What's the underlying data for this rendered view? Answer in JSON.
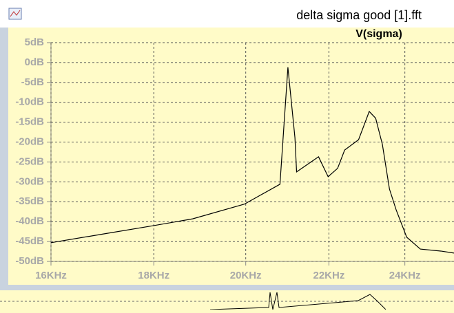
{
  "window": {
    "title": "delta sigma good [1].fft"
  },
  "chart_data": {
    "type": "line",
    "log_x": true,
    "grid": true,
    "x": [
      16000,
      16990,
      18000,
      18820,
      19970,
      20800,
      20990,
      21160,
      21200,
      21740,
      21980,
      22220,
      22400,
      22760,
      23040,
      23210,
      23390,
      23580,
      23760,
      24050,
      24430,
      25010,
      25390
    ],
    "series": [
      {
        "name": "V(sigma)",
        "color": "#000000",
        "values": [
          -45.3,
          -43.1,
          -41.0,
          -39.3,
          -35.6,
          -30.6,
          -1.2,
          -18.9,
          -27.5,
          -23.7,
          -28.7,
          -26.6,
          -22.0,
          -19.4,
          -12.3,
          -14.0,
          -20.6,
          -31.8,
          -37.0,
          -43.9,
          -46.9,
          -47.4,
          -47.9
        ]
      }
    ],
    "xlim": [
      16000,
      25390
    ],
    "ylim": [
      -50,
      5
    ],
    "xticks": [
      {
        "value": 16000,
        "label": "16KHz"
      },
      {
        "value": 18000,
        "label": "18KHz"
      },
      {
        "value": 20000,
        "label": "20KHz"
      },
      {
        "value": 22000,
        "label": "22KHz"
      },
      {
        "value": 24000,
        "label": "24KHz"
      }
    ],
    "yticks": [
      {
        "value": 5,
        "label": "5dB"
      },
      {
        "value": 0,
        "label": "0dB"
      },
      {
        "value": -5,
        "label": "-5dB"
      },
      {
        "value": -10,
        "label": "-10dB"
      },
      {
        "value": -15,
        "label": "-15dB"
      },
      {
        "value": -20,
        "label": "-20dB"
      },
      {
        "value": -25,
        "label": "-25dB"
      },
      {
        "value": -30,
        "label": "-30dB"
      },
      {
        "value": -35,
        "label": "-35dB"
      },
      {
        "value": -40,
        "label": "-40dB"
      },
      {
        "value": -45,
        "label": "-45dB"
      },
      {
        "value": -50,
        "label": "-50dB"
      }
    ]
  }
}
